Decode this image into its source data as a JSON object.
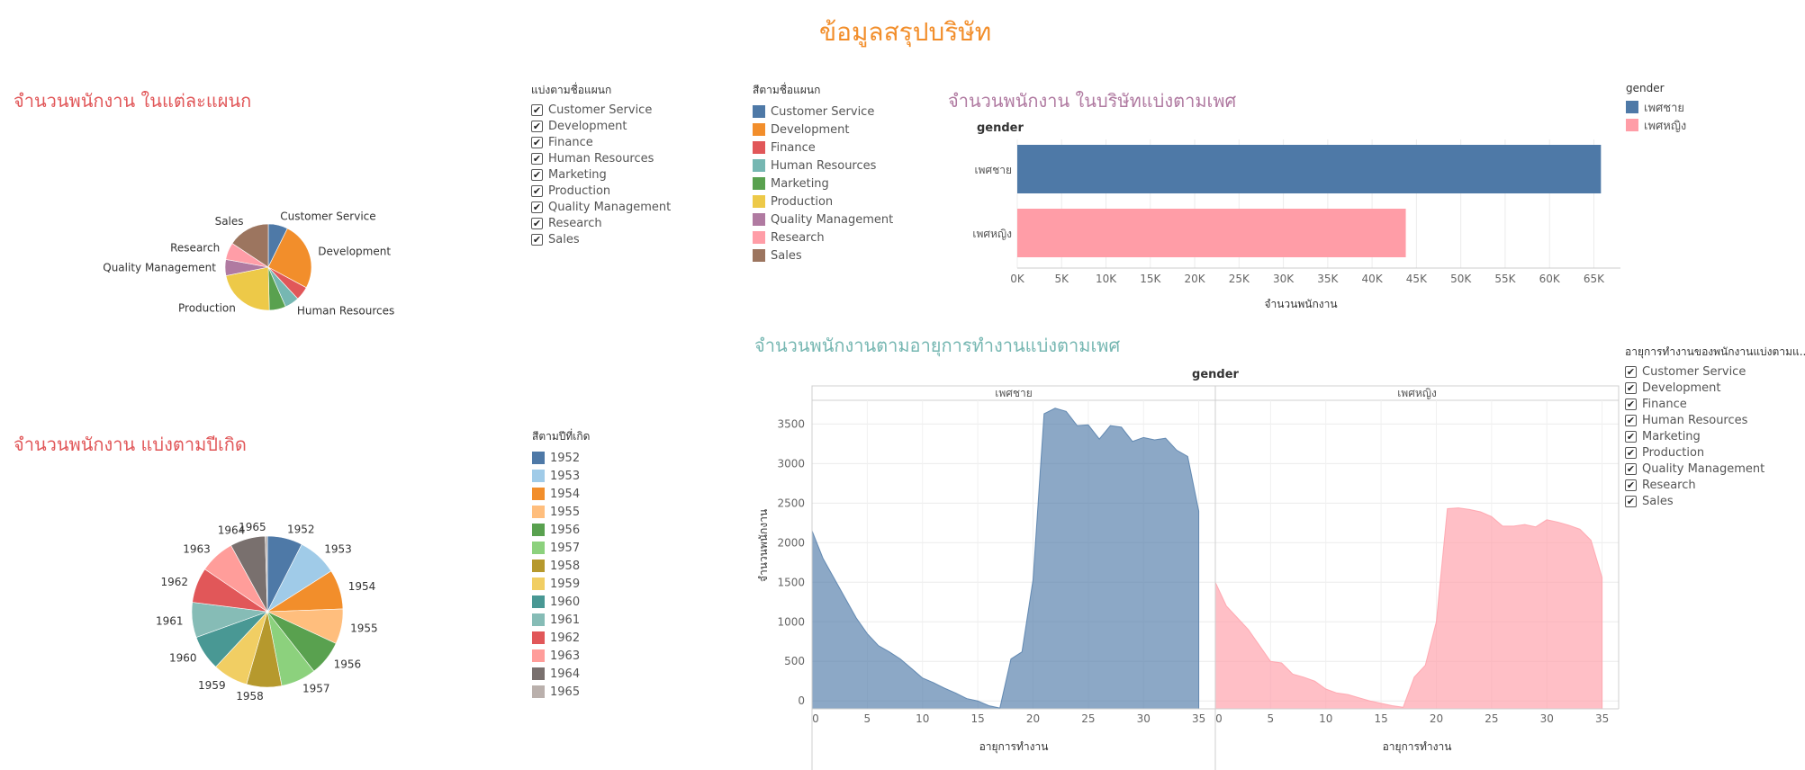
{
  "dashboard_title": "ข้อมูลสรุปบริษัท",
  "colors": {
    "title": "#f28e2b",
    "dept_title": "#e15759",
    "birth_title": "#e15759",
    "gender_title": "#b07aa1",
    "tenure_title": "#76b7b2",
    "male": "#4e79a7",
    "female": "#ff9da7"
  },
  "dept_filter": {
    "title": "แบ่งตามชื่อแผนก",
    "items": [
      "Customer Service",
      "Development",
      "Finance",
      "Human Resources",
      "Marketing",
      "Production",
      "Quality Management",
      "Research",
      "Sales"
    ]
  },
  "dept_legend": {
    "title": "สีตามชื่อแผนก",
    "items": [
      {
        "label": "Customer Service",
        "color": "#4e79a7"
      },
      {
        "label": "Development",
        "color": "#f28e2b"
      },
      {
        "label": "Finance",
        "color": "#e15759"
      },
      {
        "label": "Human Resources",
        "color": "#76b7b2"
      },
      {
        "label": "Marketing",
        "color": "#59a14f"
      },
      {
        "label": "Production",
        "color": "#edc948"
      },
      {
        "label": "Quality Management",
        "color": "#b07aa1"
      },
      {
        "label": "Research",
        "color": "#ff9da7"
      },
      {
        "label": "Sales",
        "color": "#9c755f"
      }
    ]
  },
  "birth_legend": {
    "title": "สีตามปีที่เกิด",
    "items": [
      {
        "label": "1952",
        "color": "#4e79a7"
      },
      {
        "label": "1953",
        "color": "#a0cbe8"
      },
      {
        "label": "1954",
        "color": "#f28e2b"
      },
      {
        "label": "1955",
        "color": "#ffbe7d"
      },
      {
        "label": "1956",
        "color": "#59a14f"
      },
      {
        "label": "1957",
        "color": "#8cd17d"
      },
      {
        "label": "1958",
        "color": "#b6992d"
      },
      {
        "label": "1959",
        "color": "#f1ce63"
      },
      {
        "label": "1960",
        "color": "#499894"
      },
      {
        "label": "1961",
        "color": "#86bcb6"
      },
      {
        "label": "1962",
        "color": "#e15759"
      },
      {
        "label": "1963",
        "color": "#ff9d9a"
      },
      {
        "label": "1964",
        "color": "#79706e"
      },
      {
        "label": "1965",
        "color": "#bab0ac"
      }
    ]
  },
  "gender_legend": {
    "title": "gender",
    "items": [
      {
        "label": "เพศชาย",
        "color": "#4e79a7"
      },
      {
        "label": "เพศหญิง",
        "color": "#ff9da7"
      }
    ]
  },
  "tenure_filter": {
    "title": "อายุการทำงานของพนักงานแบ่งตามแ...",
    "items": [
      "Customer Service",
      "Development",
      "Finance",
      "Human Resources",
      "Marketing",
      "Production",
      "Quality Management",
      "Research",
      "Sales"
    ]
  },
  "chart_data": [
    {
      "id": "dept_pie",
      "type": "pie",
      "title": "จำนวนพนักงาน ในแต่ละแผนก",
      "categories": [
        "Customer Service",
        "Development",
        "Finance",
        "Human Resources",
        "Marketing",
        "Production",
        "Quality Management",
        "Research",
        "Sales"
      ],
      "values": [
        17569,
        61386,
        12437,
        12898,
        14842,
        53304,
        14546,
        15441,
        37701
      ],
      "colors": [
        "#4e79a7",
        "#f28e2b",
        "#e15759",
        "#76b7b2",
        "#59a14f",
        "#edc948",
        "#b07aa1",
        "#ff9da7",
        "#9c755f"
      ],
      "labels_shown": [
        "Customer Service",
        "Development",
        "Human Resources",
        "Production",
        "Quality Management",
        "Research",
        "Sales"
      ]
    },
    {
      "id": "birth_pie",
      "type": "pie",
      "title": "จำนวนพนักงาน แบ่งตามปีเกิด",
      "categories": [
        "1952",
        "1953",
        "1954",
        "1955",
        "1956",
        "1957",
        "1958",
        "1959",
        "1960",
        "1961",
        "1962",
        "1963",
        "1964",
        "1965"
      ],
      "values": [
        8,
        9,
        9,
        8,
        8,
        8,
        8,
        8,
        8,
        8,
        8,
        8,
        8,
        0.5
      ],
      "colors": [
        "#4e79a7",
        "#a0cbe8",
        "#f28e2b",
        "#ffbe7d",
        "#59a14f",
        "#8cd17d",
        "#b6992d",
        "#f1ce63",
        "#499894",
        "#86bcb6",
        "#e15759",
        "#ff9d9a",
        "#79706e",
        "#bab0ac"
      ]
    },
    {
      "id": "gender_bar",
      "type": "bar",
      "title": "จำนวนพนักงาน ในบริษัทแบ่งตามเพศ",
      "categories": [
        "เพศชาย",
        "เพศหญิง"
      ],
      "values": [
        65800,
        43800
      ],
      "colors": [
        "#4e79a7",
        "#ff9da7"
      ],
      "ylabel": "gender",
      "xlabel": "จำนวนพนักงาน",
      "xlim": [
        0,
        68000
      ],
      "ticks": [
        0,
        5000,
        10000,
        15000,
        20000,
        25000,
        30000,
        35000,
        40000,
        45000,
        50000,
        55000,
        60000,
        65000
      ],
      "tick_labels": [
        "0K",
        "5K",
        "10K",
        "15K",
        "20K",
        "25K",
        "30K",
        "35K",
        "40K",
        "45K",
        "50K",
        "55K",
        "60K",
        "65K"
      ]
    },
    {
      "id": "tenure_area",
      "type": "area",
      "title": "จำนวนพนักงานตามอายุการทำงานแบ่งตามเพศ",
      "column_header": "gender",
      "ylabel": "จำนวนพนักงาน",
      "xlabel": "อายุการทำงาน",
      "ylim": [
        -100,
        3800
      ],
      "yticks": [
        0,
        500,
        1000,
        1500,
        2000,
        2500,
        3000,
        3500
      ],
      "xticks": [
        0,
        5,
        10,
        15,
        20,
        25,
        30,
        35
      ],
      "xlim": [
        0,
        36.5
      ],
      "panels": [
        {
          "name": "เพศชาย",
          "color": "#4e79a7",
          "x": [
            0,
            1,
            2,
            3,
            4,
            5,
            6,
            7,
            8,
            9,
            10,
            11,
            12,
            13,
            14,
            15,
            16,
            17,
            18,
            19,
            20,
            21,
            22,
            23,
            24,
            25,
            26,
            27,
            28,
            29,
            30,
            31,
            32,
            33,
            34,
            35
          ],
          "y": [
            2150,
            1800,
            1550,
            1300,
            1050,
            850,
            700,
            620,
            530,
            410,
            290,
            230,
            160,
            100,
            30,
            0,
            -60,
            -90,
            530,
            620,
            1530,
            3630,
            3700,
            3660,
            3480,
            3490,
            3310,
            3480,
            3460,
            3280,
            3330,
            3300,
            3320,
            3170,
            3090,
            2400
          ]
        },
        {
          "name": "เพศหญิง",
          "color": "#ff9da7",
          "x": [
            0,
            1,
            2,
            3,
            4,
            5,
            6,
            7,
            8,
            9,
            10,
            11,
            12,
            13,
            14,
            15,
            16,
            17,
            18,
            19,
            20,
            21,
            22,
            23,
            24,
            25,
            26,
            27,
            28,
            29,
            30,
            31,
            32,
            33,
            34,
            35
          ],
          "y": [
            1500,
            1200,
            1050,
            900,
            700,
            500,
            480,
            340,
            300,
            250,
            150,
            100,
            80,
            40,
            0,
            -30,
            -60,
            -80,
            300,
            450,
            1000,
            2430,
            2440,
            2420,
            2390,
            2330,
            2210,
            2210,
            2230,
            2200,
            2290,
            2260,
            2220,
            2170,
            2030,
            1560
          ]
        }
      ]
    }
  ]
}
